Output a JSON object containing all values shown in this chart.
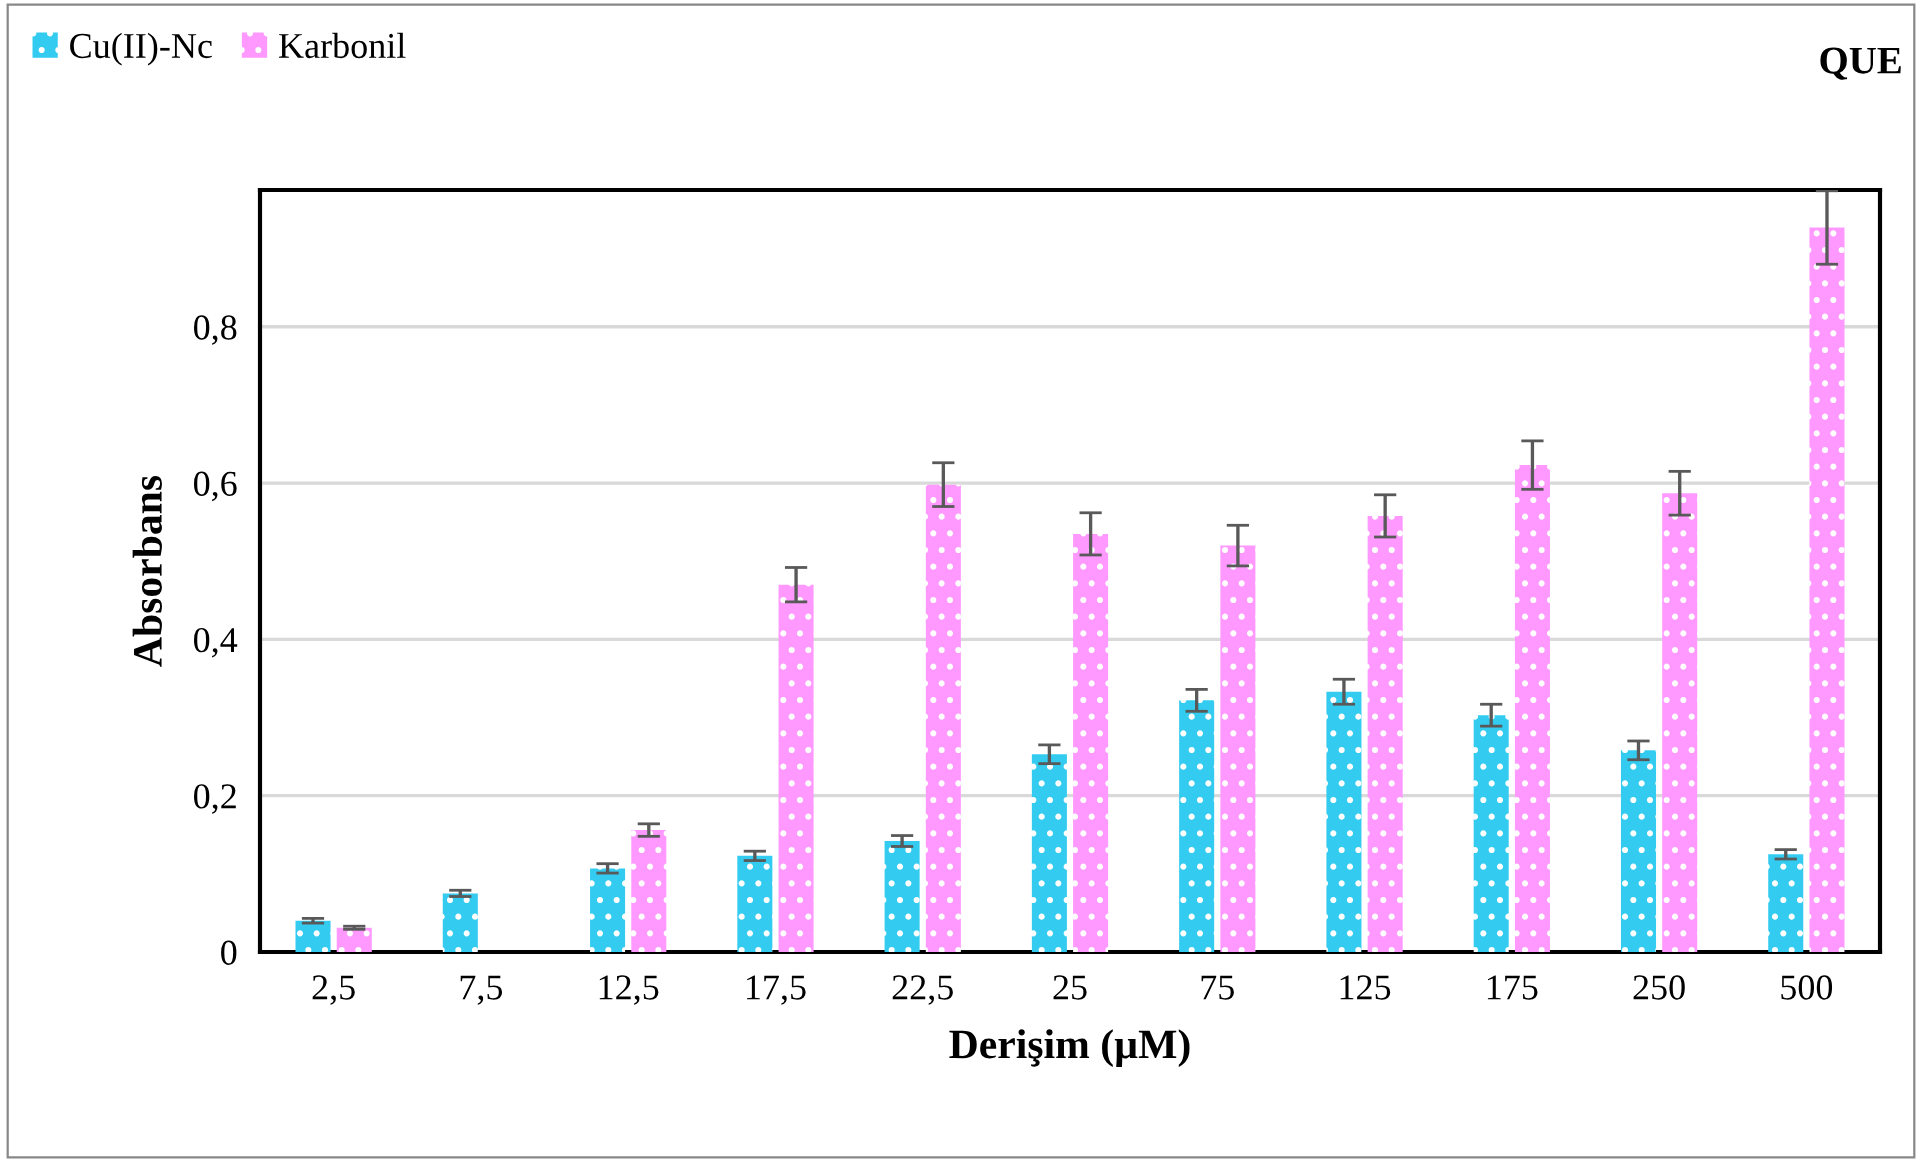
{
  "chart_data": {
    "type": "bar",
    "title": "QUE",
    "xlabel": "Derişim (µM)",
    "ylabel": "Absorbans",
    "categories": [
      "2,5",
      "7,5",
      "12,5",
      "17,5",
      "22,5",
      "25",
      "75",
      "125",
      "175",
      "250",
      "500"
    ],
    "series": [
      {
        "name": "Cu(II)-Nc",
        "color": "#33ccf0",
        "values": [
          0.04,
          0.075,
          0.107,
          0.123,
          0.142,
          0.253,
          0.322,
          0.333,
          0.303,
          0.258,
          0.125
        ],
        "errors": [
          0.003,
          0.004,
          0.006,
          0.006,
          0.007,
          0.012,
          0.014,
          0.016,
          0.014,
          0.012,
          0.006
        ]
      },
      {
        "name": "Karbonil",
        "color": "#ff99ff",
        "values": [
          0.031,
          null,
          0.156,
          0.47,
          0.598,
          0.535,
          0.52,
          0.558,
          0.623,
          0.587,
          0.927
        ],
        "errors": [
          0.002,
          null,
          0.008,
          0.022,
          0.028,
          0.027,
          0.026,
          0.027,
          0.031,
          0.028,
          0.047
        ]
      }
    ],
    "ylim": [
      0,
      0.975
    ],
    "yticks": [
      0,
      {
        "value": 0.2,
        "label": "0,2"
      },
      {
        "value": 0.4,
        "label": "0,4"
      },
      {
        "value": 0.6,
        "label": "0,6"
      },
      {
        "value": 0.8,
        "label": "0,8"
      }
    ],
    "grid": "y",
    "legend": "top left"
  }
}
